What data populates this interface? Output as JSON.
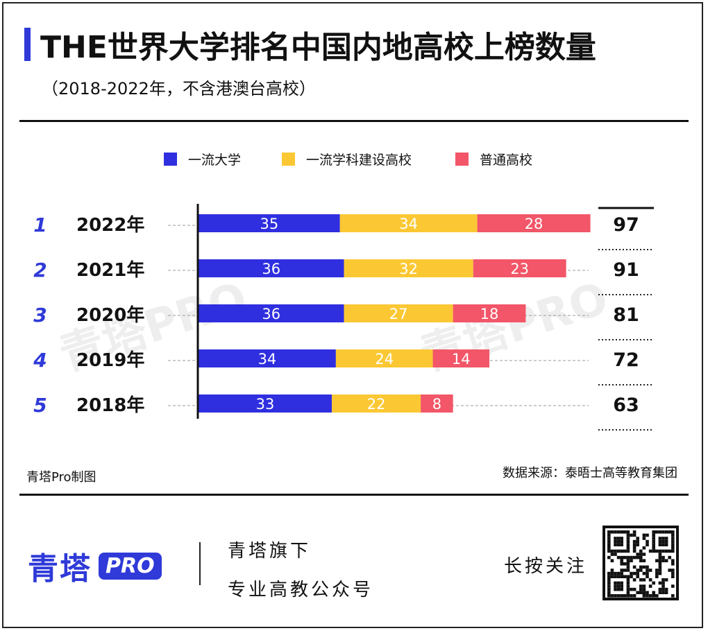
{
  "header": {
    "title": "THE世界大学排名中国内地高校上榜数量",
    "subtitle": "（2018-2022年，不含港澳台高校）"
  },
  "colors": {
    "accent": "#2f3ad8",
    "series1": "#2f2fe0",
    "series2": "#fbc834",
    "series3": "#f25668",
    "rank_text": "#2f3ad8"
  },
  "watermark_text": "青塔PRO",
  "chart_data": {
    "type": "bar",
    "orientation": "horizontal",
    "stacked": true,
    "categories": [
      "2022年",
      "2021年",
      "2020年",
      "2019年",
      "2018年"
    ],
    "ranks": [
      "1",
      "2",
      "3",
      "4",
      "5"
    ],
    "series": [
      {
        "name": "一流大学",
        "values": [
          35,
          36,
          36,
          34,
          33
        ]
      },
      {
        "name": "一流学科建设高校",
        "values": [
          34,
          32,
          27,
          24,
          22
        ]
      },
      {
        "name": "普通高校",
        "values": [
          28,
          23,
          18,
          14,
          8
        ]
      }
    ],
    "totals": [
      97,
      91,
      81,
      72,
      63
    ],
    "legend_position": "top-center",
    "grid": false
  },
  "notes": {
    "credit": "青塔Pro制图",
    "source": "数据来源：泰晤士高等教育集团"
  },
  "footer": {
    "logo_text": "青塔",
    "logo_badge": "PRO",
    "line1": "青塔旗下",
    "line2": "专业高教公众号",
    "follow": "长按关注",
    "qr_icon": "qr-code-icon"
  }
}
